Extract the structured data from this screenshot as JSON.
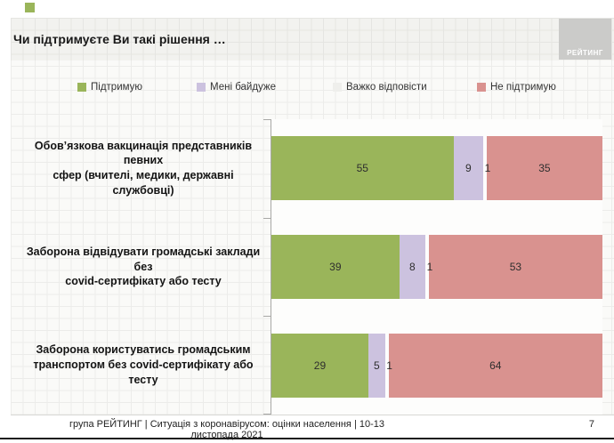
{
  "slide": {
    "title": "Чи підтримуєте Ви такі рішення …",
    "logo_text": "РЕЙТИНГ",
    "accent_color": "#9AB55A"
  },
  "legend": [
    {
      "label": "Підтримую",
      "color": "#9AB55A"
    },
    {
      "label": "Мені байдуже",
      "color": "#CCC2DF"
    },
    {
      "label": "Важко відповісти",
      "color": "#EFEFEC"
    },
    {
      "label": "Не підтримую",
      "color": "#D9928F"
    }
  ],
  "chart_data": {
    "type": "bar",
    "orientation": "horizontal",
    "stacked": true,
    "unit": "percent",
    "xlim": [
      0,
      100
    ],
    "grid": false,
    "legend_position": "top",
    "title": "Чи підтримуєте Ви такі рішення …",
    "categories": [
      "Обов’язкова вакцинація представників певних сфер (вчителі, медики, державні службовці)",
      "Заборона відвідувати громадські заклади без covid-сертифікату або тесту",
      "Заборона користуватись громадським транспортом без covid-сертифікату або тесту"
    ],
    "categories_wrapped": [
      [
        "Обов’язкова вакцинація представників певних",
        "сфер (вчителі, медики, державні службовці)"
      ],
      [
        "Заборона відвідувати громадські заклади без",
        "covid-сертифікату або тесту"
      ],
      [
        "Заборона користуватись громадським",
        "транспортом без covid-сертифікату або тесту"
      ]
    ],
    "series": [
      {
        "name": "Підтримую",
        "color": "#9AB55A",
        "values": [
          55,
          39,
          29
        ]
      },
      {
        "name": "Мені байдуже",
        "color": "#CCC2DF",
        "values": [
          9,
          8,
          5
        ]
      },
      {
        "name": "Важко відповісти",
        "color": "#FDFDFD",
        "values": [
          1,
          1,
          1
        ]
      },
      {
        "name": "Не підтримую",
        "color": "#D9928F",
        "values": [
          35,
          53,
          64
        ]
      }
    ]
  },
  "footer": {
    "source_line": "група РЕЙТИНГ | Ситуація з коронавірусом: оцінки населення | 10-13 листопада 2021",
    "page_number": "7"
  }
}
